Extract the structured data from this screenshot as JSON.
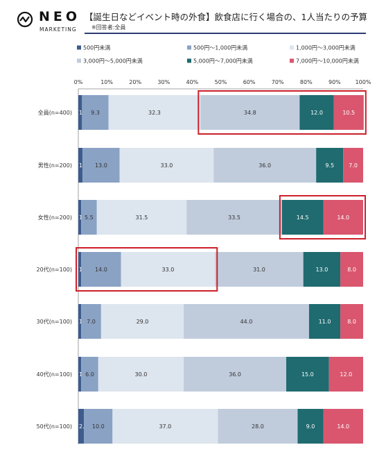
{
  "header": {
    "logo_text": "NEO",
    "logo_sub": "MARKETING",
    "title": "【誕生日などイベント時の外食】飲食店に行く場合の、1人当たりの予算",
    "subtitle": "※回答者:全員"
  },
  "chart_data": {
    "type": "bar",
    "stacked": true,
    "orientation": "horizontal",
    "title": "【誕生日などイベント時の外食】飲食店に行く場合の、1人当たりの予算",
    "subtitle": "※回答者:全員",
    "categories": [
      "全員(n=400)",
      "男性(n=200)",
      "女性(n=200)",
      "20代(n=100)",
      "30代(n=100)",
      "40代(n=100)",
      "50代(n=100)"
    ],
    "series": [
      {
        "name": "500円未満",
        "color": "#3e5c8c",
        "values": [
          1.3,
          1.5,
          1.0,
          1.0,
          1.0,
          1.0,
          2.0
        ]
      },
      {
        "name": "500円〜1,000円未満",
        "color": "#8aa2c4",
        "values": [
          9.3,
          13.0,
          5.5,
          14.0,
          7.0,
          6.0,
          10.0
        ]
      },
      {
        "name": "1,000円〜3,000円未満",
        "color": "#dde5ee",
        "values": [
          32.3,
          33.0,
          31.5,
          33.0,
          29.0,
          30.0,
          37.0
        ]
      },
      {
        "name": "3,000円〜5,000円未満",
        "color": "#c0ccdc",
        "values": [
          34.8,
          36.0,
          33.5,
          31.0,
          44.0,
          36.0,
          28.0
        ]
      },
      {
        "name": "5,000円〜7,000円未満",
        "color": "#1f6b70",
        "values": [
          12.0,
          9.5,
          14.5,
          13.0,
          11.0,
          15.0,
          9.0
        ]
      },
      {
        "name": "7,000円〜10,000円未満",
        "color": "#d9566e",
        "values": [
          10.5,
          7.0,
          14.0,
          8.0,
          8.0,
          12.0,
          14.0
        ]
      }
    ],
    "x_ticks": [
      "0%",
      "10%",
      "20%",
      "30%",
      "40%",
      "50%",
      "60%",
      "70%",
      "80%",
      "90%",
      "100%"
    ],
    "xlim": [
      0,
      100
    ],
    "legend_position": "top",
    "highlights": [
      {
        "category": "全員(n=400)",
        "series": [
          "3,000円〜5,000円未満",
          "5,000円〜7,000円未満",
          "7,000円〜10,000円未満"
        ],
        "color": "#cc1f2a"
      },
      {
        "category": "女性(n=200)",
        "series": [
          "5,000円〜7,000円未満",
          "7,000円〜10,000円未満"
        ],
        "color": "#cc1f2a"
      },
      {
        "category": "20代(n=100)",
        "series": [
          "500円未満",
          "500円〜1,000円未満",
          "1,000円〜3,000円未満"
        ],
        "color": "#cc1f2a"
      }
    ]
  }
}
